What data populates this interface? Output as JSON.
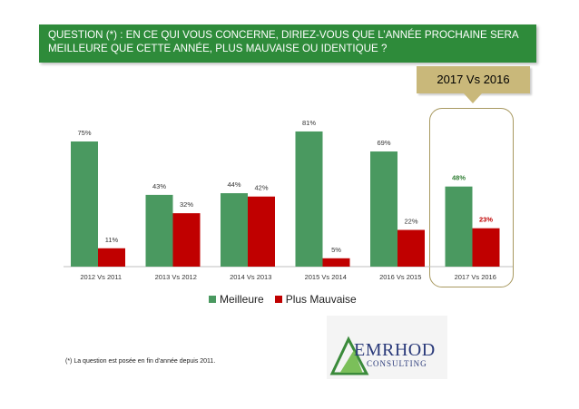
{
  "question": {
    "line1": "QUESTION (*) : EN CE QUI VOUS CONCERNE, DIRIEZ-VOUS QUE L’ANNÉE PROCHAINE SERA",
    "line2": "MEILLEURE QUE CETTE ANNÉE, PLUS MAUVAISE OU IDENTIQUE ?"
  },
  "badge": "2017 Vs 2016",
  "footnote": "(*) La question est posée en fin d’année depuis 2011.",
  "logo": {
    "name": "EMRHOD",
    "sub": "CONSULTING"
  },
  "colors": {
    "green": "#4a9960",
    "red": "#c00000",
    "banner": "#2e8b3a",
    "gold": "#c9b87a"
  },
  "chart_data": {
    "type": "bar",
    "categories": [
      "2012 Vs 2011",
      "2013 Vs 2012",
      "2014 Vs 2013",
      "2015 Vs 2014",
      "2016 Vs 2015",
      "2017 Vs 2016"
    ],
    "series": [
      {
        "name": "Meilleure",
        "values": [
          75,
          43,
          44,
          81,
          69,
          48
        ],
        "labels": [
          "75%",
          "43%",
          "44%",
          "81%",
          "69%",
          "48%"
        ],
        "color": "#4a9960"
      },
      {
        "name": "Plus Mauvaise",
        "values": [
          11,
          32,
          42,
          5,
          22,
          23
        ],
        "labels": [
          "11%",
          "32%",
          "42%",
          "5%",
          "22%",
          "23%"
        ],
        "color": "#c00000"
      }
    ],
    "highlight_category": "2017 Vs 2016",
    "ylim": [
      0,
      100
    ],
    "grid": false,
    "legend": "bottom"
  }
}
